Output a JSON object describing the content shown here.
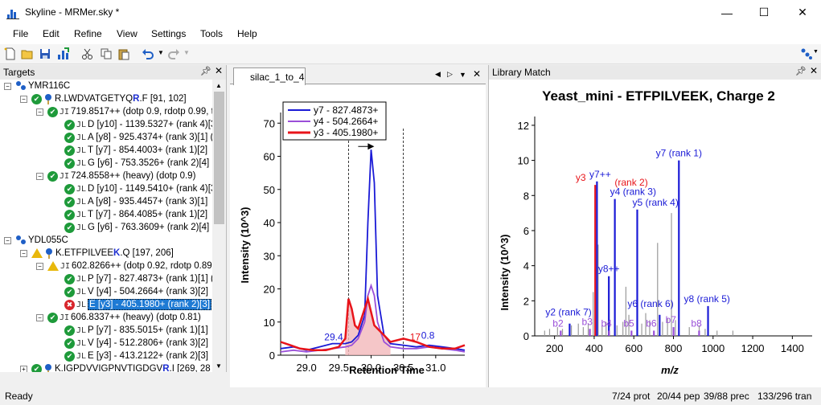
{
  "window": {
    "title": "Skyline - MRMer.sky *"
  },
  "menu": [
    "File",
    "Edit",
    "Refine",
    "View",
    "Settings",
    "Tools",
    "Help"
  ],
  "targets": {
    "header": "Targets",
    "rows": [
      {
        "text": "YMR116C"
      },
      {
        "pre": "R.LWDVATGETYQ",
        "b": "R",
        "post": ".F [91, 102]"
      },
      {
        "text": "719.8517++ (dotp 0.9, rdotp 0.99, t"
      },
      {
        "text": "D [y10] - 1139.5327+ (rank 4)[3"
      },
      {
        "text": "A [y8] - 925.4374+ (rank 3)[1] ("
      },
      {
        "text": "T [y7] - 854.4003+ (rank 1)[2]"
      },
      {
        "text": "G [y6] - 753.3526+ (rank 2)[4]"
      },
      {
        "text": "724.8558++ (heavy) (dotp 0.9)"
      },
      {
        "text": "D [y10] - 1149.5410+ (rank 4)[3"
      },
      {
        "text": "A [y8] - 935.4457+ (rank 3)[1]"
      },
      {
        "text": "T [y7] - 864.4085+ (rank 1)[2]"
      },
      {
        "text": "G [y6] - 763.3609+ (rank 2)[4]"
      },
      {
        "text": "YDL055C"
      },
      {
        "pre": "K.ETFPILVEE",
        "b": "K",
        "post": ".Q [197, 206]"
      },
      {
        "text": "602.8266++ (dotp 0.92, rdotp 0.89,"
      },
      {
        "text": "P [y7] - 827.4873+ (rank 1)[1] ("
      },
      {
        "text": "V [y4] - 504.2664+ (rank 3)[2]"
      },
      {
        "text": "E [y3] - 405.1980+ (rank 2)[3]"
      },
      {
        "text": "606.8337++ (heavy) (dotp 0.81)"
      },
      {
        "text": "P [y7] - 835.5015+ (rank 1)[1]"
      },
      {
        "text": "V [y4] - 512.2806+ (rank 3)[2]"
      },
      {
        "text": "E [y3] - 413.2122+ (rank 2)[3]"
      },
      {
        "pre": "K.IGPDVVIGPNVTIGDGV",
        "b": "R",
        "post": ".I [269, 28"
      }
    ]
  },
  "chrom": {
    "tab": "silac_1_to_4",
    "legend": [
      {
        "name": "y7 - 827.4873+",
        "color": "#1a1ad6"
      },
      {
        "name": "y4 - 504.2664+",
        "color": "#9a4fd8"
      },
      {
        "name": "y3 - 405.1980+",
        "color": "#e8141a"
      }
    ],
    "xlabel": "Retention Time",
    "ylabel": "Intensity (10^3)",
    "xticks": [
      "29.0",
      "29.5",
      "30.0",
      "30.5",
      "31.0"
    ],
    "yticks": [
      "0",
      "10",
      "20",
      "30",
      "40",
      "50",
      "60",
      "70"
    ],
    "peak_label": "30.0",
    "label_left": "29.4",
    "label_right_red": "17",
    "label_right_blue": "0.8"
  },
  "library": {
    "header": "Library Match",
    "title": "Yeast_mini - ETFPILVEEK, Charge 2",
    "xlabel": "m/z",
    "ylabel": "Intensity (10^3)",
    "xticks": [
      "200",
      "400",
      "600",
      "800",
      "1000",
      "1200",
      "1400"
    ],
    "yticks": [
      "0",
      "2",
      "4",
      "6",
      "8",
      "10",
      "12"
    ]
  },
  "chart_data": [
    {
      "type": "line",
      "title": "",
      "xlabel": "Retention Time",
      "ylabel": "Intensity (10^3)",
      "xlim": [
        28.6,
        31.45
      ],
      "ylim": [
        0,
        72
      ],
      "series": [
        {
          "name": "y7 - 827.4873+",
          "color": "#1a1ad6",
          "x": [
            28.6,
            28.8,
            29.0,
            29.2,
            29.4,
            29.6,
            29.7,
            29.8,
            29.9,
            29.95,
            30.0,
            30.05,
            30.1,
            30.2,
            30.3,
            30.5,
            30.7,
            30.9,
            31.1,
            31.3,
            31.45
          ],
          "y": [
            2,
            2.5,
            1.5,
            2.5,
            3.5,
            3.5,
            4,
            6,
            12,
            40,
            62,
            52,
            18,
            6,
            3.5,
            3,
            2.5,
            3,
            2.5,
            2,
            1.5
          ]
        },
        {
          "name": "y4 - 504.2664+",
          "color": "#9a4fd8",
          "x": [
            28.6,
            28.8,
            29.0,
            29.2,
            29.4,
            29.6,
            29.7,
            29.8,
            29.9,
            29.95,
            30.0,
            30.05,
            30.1,
            30.2,
            30.3,
            30.5,
            30.7,
            30.9,
            31.1,
            31.3,
            31.45
          ],
          "y": [
            1,
            1.5,
            1,
            1.5,
            2,
            2.5,
            3,
            5,
            10,
            18,
            21,
            18,
            10,
            4,
            2.5,
            2,
            2,
            2.5,
            2,
            1.5,
            1
          ]
        },
        {
          "name": "y3 - 405.1980+",
          "color": "#e8141a",
          "x": [
            28.6,
            28.75,
            28.9,
            29.1,
            29.3,
            29.5,
            29.6,
            29.65,
            29.7,
            29.75,
            29.8,
            29.85,
            29.9,
            29.95,
            30.0,
            30.05,
            30.1,
            30.2,
            30.3,
            30.5,
            30.7,
            30.9,
            31.1,
            31.3,
            31.45
          ],
          "y": [
            4,
            3,
            2,
            1.5,
            1.5,
            2.5,
            5,
            17,
            14,
            9,
            8,
            11,
            14,
            17,
            13,
            9,
            8,
            6,
            4,
            5,
            4,
            2.5,
            2,
            2,
            3
          ]
        }
      ],
      "annotations": [
        "30.0",
        "29.4",
        "17",
        "0.8"
      ]
    },
    {
      "type": "bar",
      "title": "Yeast_mini - ETFPILVEEK, Charge 2",
      "xlabel": "m/z",
      "ylabel": "Intensity (10^3)",
      "xlim": [
        100,
        1500
      ],
      "ylim": [
        0,
        12.5
      ],
      "peaks_gray": [
        {
          "x": 150,
          "y": 0.3
        },
        {
          "x": 175,
          "y": 0.4
        },
        {
          "x": 215,
          "y": 0.5
        },
        {
          "x": 240,
          "y": 0.4
        },
        {
          "x": 285,
          "y": 0.6
        },
        {
          "x": 320,
          "y": 0.7
        },
        {
          "x": 345,
          "y": 0.5
        },
        {
          "x": 370,
          "y": 0.7
        },
        {
          "x": 395,
          "y": 2.5
        },
        {
          "x": 420,
          "y": 5.2
        },
        {
          "x": 440,
          "y": 0.6
        },
        {
          "x": 460,
          "y": 0.8
        },
        {
          "x": 475,
          "y": 1.0
        },
        {
          "x": 515,
          "y": 0.6
        },
        {
          "x": 545,
          "y": 0.8
        },
        {
          "x": 560,
          "y": 2.8
        },
        {
          "x": 575,
          "y": 1.2
        },
        {
          "x": 640,
          "y": 0.7
        },
        {
          "x": 660,
          "y": 1.3
        },
        {
          "x": 680,
          "y": 0.9
        },
        {
          "x": 720,
          "y": 5.3
        },
        {
          "x": 745,
          "y": 0.8
        },
        {
          "x": 770,
          "y": 1.0
        },
        {
          "x": 790,
          "y": 7.0
        },
        {
          "x": 810,
          "y": 0.9
        },
        {
          "x": 880,
          "y": 0.5
        },
        {
          "x": 930,
          "y": 0.6
        },
        {
          "x": 960,
          "y": 0.4
        },
        {
          "x": 1020,
          "y": 0.3
        },
        {
          "x": 1100,
          "y": 0.3
        }
      ],
      "peaks_labeled": [
        {
          "x": 405.2,
          "y": 8.6,
          "label": "y3",
          "color": "#e8141a"
        },
        {
          "x": 414.0,
          "y": 8.8,
          "label": "y7++",
          "color": "#1a1ad6"
        },
        {
          "x": 504.3,
          "y": 7.8,
          "label": "y4 (rank 3)",
          "color": "#1a1ad6"
        },
        {
          "x": 617.3,
          "y": 7.2,
          "label": "y5 (rank 4)",
          "color": "#1a1ad6"
        },
        {
          "x": 827.5,
          "y": 10.0,
          "label": "y7 (rank 1)",
          "color": "#1a1ad6"
        },
        {
          "x": 474.0,
          "y": 3.4,
          "label": "y8++",
          "color": "#1a1ad6"
        },
        {
          "x": 730.4,
          "y": 1.2,
          "label": "y6 (rank 6)",
          "color": "#1a1ad6"
        },
        {
          "x": 974.6,
          "y": 1.7,
          "label": "y8 (rank 5)",
          "color": "#1a1ad6"
        },
        {
          "x": 276.2,
          "y": 0.7,
          "label": "y2 (rank 7)",
          "color": "#1a1ad6"
        },
        {
          "x": 231.1,
          "y": 0.3,
          "label": "b2",
          "color": "#9a4fd8"
        },
        {
          "x": 378.2,
          "y": 0.4,
          "label": "b3",
          "color": "#9a4fd8"
        },
        {
          "x": 475.2,
          "y": 0.3,
          "label": "b4",
          "color": "#9a4fd8"
        },
        {
          "x": 588.3,
          "y": 0.3,
          "label": "b5",
          "color": "#9a4fd8"
        },
        {
          "x": 701.4,
          "y": 0.3,
          "label": "b6",
          "color": "#9a4fd8"
        },
        {
          "x": 800.5,
          "y": 0.5,
          "label": "b7",
          "color": "#9a4fd8"
        },
        {
          "x": 929.5,
          "y": 0.3,
          "label": "b8",
          "color": "#9a4fd8"
        }
      ],
      "overlay_label": "(rank 2)"
    }
  ],
  "status": {
    "ready": "Ready",
    "prot": "7/24 prot",
    "pep": "20/44 pep",
    "prec": "39/88 prec",
    "tran": "133/296 tran"
  }
}
